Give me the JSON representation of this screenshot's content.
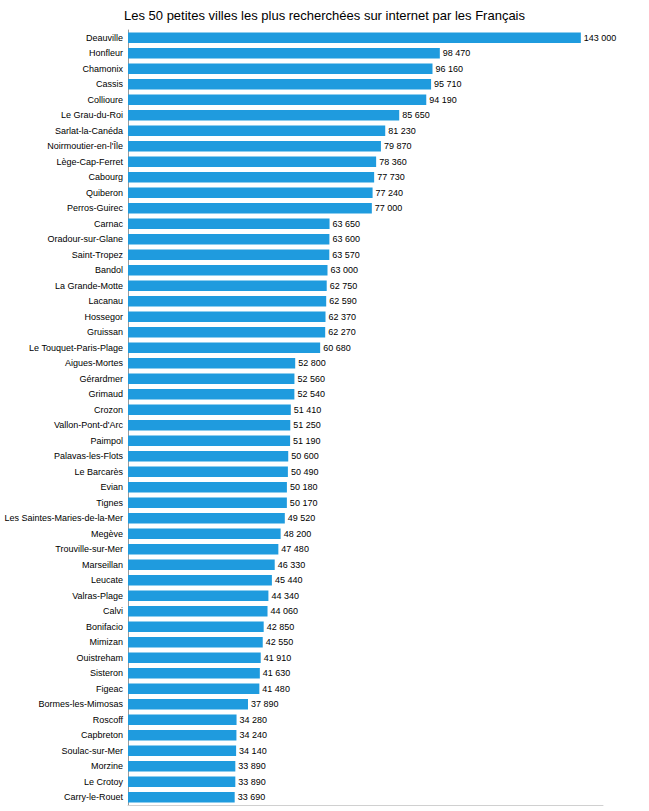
{
  "chart_data": {
    "type": "bar",
    "title": "Les 50 petites villes les plus recherchées sur internet par les Français",
    "orientation": "horizontal",
    "color": "#1f9bde",
    "grid": false,
    "data_labels": true,
    "tick_labels": "y",
    "xlim": [
      0,
      150000
    ],
    "categories": [
      "Deauville",
      "Honfleur",
      "Chamonix",
      "Cassis",
      "Collioure",
      "Le Grau-du-Roi",
      "Sarlat-la-Canéda",
      "Noirmoutier-en-l'Île",
      "Lège-Cap-Ferret",
      "Cabourg",
      "Quiberon",
      "Perros-Guirec",
      "Carnac",
      "Oradour-sur-Glane",
      "Saint-Tropez",
      "Bandol",
      "La Grande-Motte",
      "Lacanau",
      "Hossegor",
      "Gruissan",
      "Le Touquet-Paris-Plage",
      "Aigues-Mortes",
      "Gérardmer",
      "Grimaud",
      "Crozon",
      "Vallon-Pont-d'Arc",
      "Paimpol",
      "Palavas-les-Flots",
      "Le Barcarès",
      "Evian",
      "Tignes",
      "Les Saintes-Maries-de-la-Mer",
      "Megève",
      "Trouville-sur-Mer",
      "Marseillan",
      "Leucate",
      "Valras-Plage",
      "Calvi",
      "Bonifacio",
      "Mimizan",
      "Ouistreham",
      "Sisteron",
      "Figeac",
      "Bormes-les-Mimosas",
      "Roscoff",
      "Capbreton",
      "Soulac-sur-Mer",
      "Morzine",
      "Le Crotoy",
      "Carry-le-Rouet"
    ],
    "values": [
      143000,
      98470,
      96160,
      95710,
      94190,
      85650,
      81230,
      79870,
      78360,
      77730,
      77240,
      77000,
      63650,
      63600,
      63570,
      63000,
      62750,
      62590,
      62370,
      62270,
      60680,
      52800,
      52560,
      52540,
      51410,
      51250,
      51190,
      50600,
      50490,
      50180,
      50170,
      49520,
      48200,
      47480,
      46330,
      45440,
      44340,
      44060,
      42850,
      42550,
      41910,
      41630,
      41480,
      37890,
      34280,
      34240,
      34140,
      33890,
      33890,
      33690
    ],
    "value_labels": [
      "143 000",
      "98 470",
      "96 160",
      "95 710",
      "94 190",
      "85 650",
      "81 230",
      "79 870",
      "78 360",
      "77 730",
      "77 240",
      "77 000",
      "63 650",
      "63 600",
      "63 570",
      "63 000",
      "62 750",
      "62 590",
      "62 370",
      "62 270",
      "60 680",
      "52 800",
      "52 560",
      "52 540",
      "51 410",
      "51 250",
      "51 190",
      "50 600",
      "50 490",
      "50 180",
      "50 170",
      "49 520",
      "48 200",
      "47 480",
      "46 330",
      "45 440",
      "44 340",
      "44 060",
      "42 850",
      "42 550",
      "41 910",
      "41 630",
      "41 480",
      "37 890",
      "34 280",
      "34 240",
      "34 140",
      "33 890",
      "33 890",
      "33 690"
    ]
  }
}
